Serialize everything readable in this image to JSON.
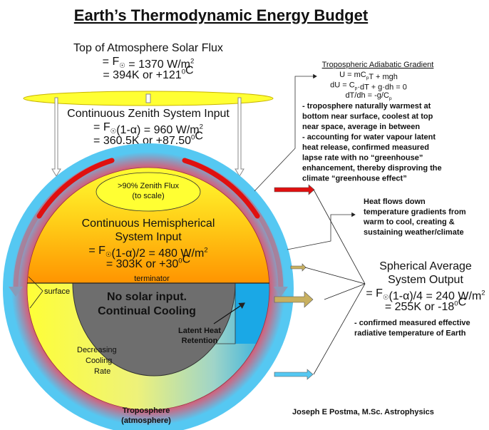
{
  "title": "Earth’s Thermodynamic Energy Budget",
  "blocks": {
    "top_flux": [
      [
        {
          "t": "Top of Atmosphere Solar Flux"
        }
      ],
      [
        {
          "t": "= F"
        },
        {
          "sub": "☉"
        },
        {
          "t": " = 1370 W/m"
        },
        {
          "sup": "2"
        }
      ],
      [
        {
          "t": "= 394K or +121"
        },
        {
          "sup": "0"
        },
        {
          "t": "C"
        }
      ]
    ],
    "zenith_input": [
      [
        {
          "t": "Continuous Zenith System Input"
        }
      ],
      [
        {
          "t": "= F"
        },
        {
          "sub": "☉"
        },
        {
          "t": "(1-α) = 960 W/m"
        },
        {
          "sup": "2"
        }
      ],
      [
        {
          "t": "= 360.5K or +87.50"
        },
        {
          "sup": "0"
        },
        {
          "t": "C"
        }
      ]
    ],
    "zenith_flux": [
      [
        {
          "t": ">90% Zenith Flux"
        }
      ],
      [
        {
          "t": "(to scale)"
        }
      ]
    ],
    "hemispherical_input": [
      [
        {
          "t": "Continuous Hemispherical"
        }
      ],
      [
        {
          "t": "System Input"
        }
      ],
      [
        {
          "t": "= F"
        },
        {
          "sub": "☉"
        },
        {
          "t": "(1-α)/2 = 480 W/m"
        },
        {
          "sup": "2"
        }
      ],
      [
        {
          "t": "= 303K or +30"
        },
        {
          "sup": "0"
        },
        {
          "t": "C"
        }
      ]
    ],
    "no_solar": [
      [
        {
          "t": "No solar input."
        }
      ],
      [
        {
          "t": "Continual Cooling"
        }
      ]
    ],
    "latent_heat": [
      [
        {
          "t": "Latent Heat"
        }
      ],
      [
        {
          "t": "Retention"
        }
      ]
    ],
    "troposphere": [
      [
        {
          "t": "Troposphere"
        }
      ],
      [
        {
          "t": "(atmosphere)"
        }
      ]
    ],
    "adiabatic_formulas": [
      [
        {
          "t": "U = mC"
        },
        {
          "sub": "p"
        },
        {
          "t": "T + mgh"
        }
      ],
      [
        {
          "t": "dU = C"
        },
        {
          "sub": "p"
        },
        {
          "t": "·dT + g·dh = 0"
        }
      ],
      [
        {
          "t": "dT/dh = -g/C"
        },
        {
          "sub": "p"
        }
      ]
    ],
    "adiabatic_notes": [
      [
        {
          "t": "- troposphere naturally warmest at"
        }
      ],
      [
        {
          "t": "bottom near surface, coolest at top"
        }
      ],
      [
        {
          "t": "near space, average in between"
        }
      ],
      [
        {
          "t": "- accounting for water vapour latent"
        }
      ],
      [
        {
          "t": "heat release, confirmed measured"
        }
      ],
      [
        {
          "t": "lapse rate with no “greenhouse”"
        }
      ],
      [
        {
          "t": "enhancement, thereby disproving the"
        }
      ],
      [
        {
          "t": "climate “greenhouse effect”"
        }
      ]
    ],
    "heat_flows": [
      [
        {
          "t": "Heat flows down"
        }
      ],
      [
        {
          "t": "temperature gradients from"
        }
      ],
      [
        {
          "t": "warm to cool, creating &"
        }
      ],
      [
        {
          "t": "sustaining weather/climate"
        }
      ]
    ],
    "spherical_output": [
      [
        {
          "t": "Spherical Average"
        }
      ],
      [
        {
          "t": "System Output"
        }
      ],
      [
        {
          "t": "= F"
        },
        {
          "sub": "☉"
        },
        {
          "t": "(1-α)/4 = 240 W/m"
        },
        {
          "sup": "2"
        }
      ],
      [
        {
          "t": "= 255K or -18"
        },
        {
          "sup": "0"
        },
        {
          "t": "C"
        }
      ]
    ],
    "output_note": [
      [
        {
          "t": "- confirmed measured effective"
        }
      ],
      [
        {
          "t": "radiative temperature of Earth"
        }
      ]
    ],
    "decreasing_cooling": [
      [
        {
          "t": "Decreasing"
        }
      ],
      [
        {
          "t": "Cooling"
        }
      ],
      [
        {
          "t": "Rate"
        }
      ]
    ]
  },
  "labels": {
    "adiabatic_title": "Tropospheric Adiabatic Gradient",
    "terminator": "terminator",
    "surface": "surface",
    "credit": "Joseph E Postma, M.Sc. Astrophysics"
  },
  "colors": {
    "atmosphere_blue": "#55c8f2",
    "warm_red": "#e01010",
    "day_yellow": "#ffff33",
    "day_orange": "#ff9900",
    "night_grey": "#6e6e6e",
    "latent_blue": "#1aa8e6",
    "output_tan": "#c8b060"
  }
}
